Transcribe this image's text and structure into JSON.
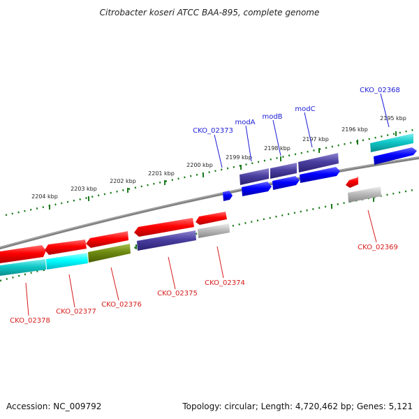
{
  "title": "Citrobacter koseri ATCC BAA-895, complete genome",
  "footer": {
    "accession": "Accession: NC_009792",
    "topology": "Topology: circular; Length: 4,720,462 bp; Genes: 5,121"
  },
  "ticks": [
    {
      "label": "2204 kbp"
    },
    {
      "label": "2203 kbp"
    },
    {
      "label": "2202 kbp"
    },
    {
      "label": "2201 kbp"
    },
    {
      "label": "2200 kbp"
    },
    {
      "label": "2199 kbp"
    },
    {
      "label": "2198 kbp"
    },
    {
      "label": "2197 kbp"
    },
    {
      "label": "2196 kbp"
    },
    {
      "label": "2195 kbp"
    }
  ],
  "genes_top": [
    {
      "label": "CKO_02368",
      "color": "#1a1ad6"
    },
    {
      "label": "modC",
      "color": "#1a1ad6"
    },
    {
      "label": "modB",
      "color": "#1a1ad6"
    },
    {
      "label": "modA",
      "color": "#1a1ad6"
    },
    {
      "label": "CKO_02373",
      "color": "#1a1ad6"
    }
  ],
  "genes_bottom": [
    {
      "label": "CKO_02369",
      "color": "#d61a1a"
    },
    {
      "label": "CKO_02374",
      "color": "#d61a1a"
    },
    {
      "label": "CKO_02375",
      "color": "#d61a1a"
    },
    {
      "label": "CKO_02376",
      "color": "#d61a1a"
    },
    {
      "label": "CKO_02377",
      "color": "#d61a1a"
    },
    {
      "label": "CKO_02378",
      "color": "#d61a1a"
    }
  ],
  "colors": {
    "forward_strand": "#0000ff",
    "reverse_strand": "#ff0000",
    "cyan_feature": "#00c8c8",
    "navy_feature": "#4a3fa0",
    "olive_feature": "#6e8a10",
    "grey_feature": "#aaaaaa",
    "backbone": "#808080",
    "tick_marks": "#1a7a1a"
  }
}
